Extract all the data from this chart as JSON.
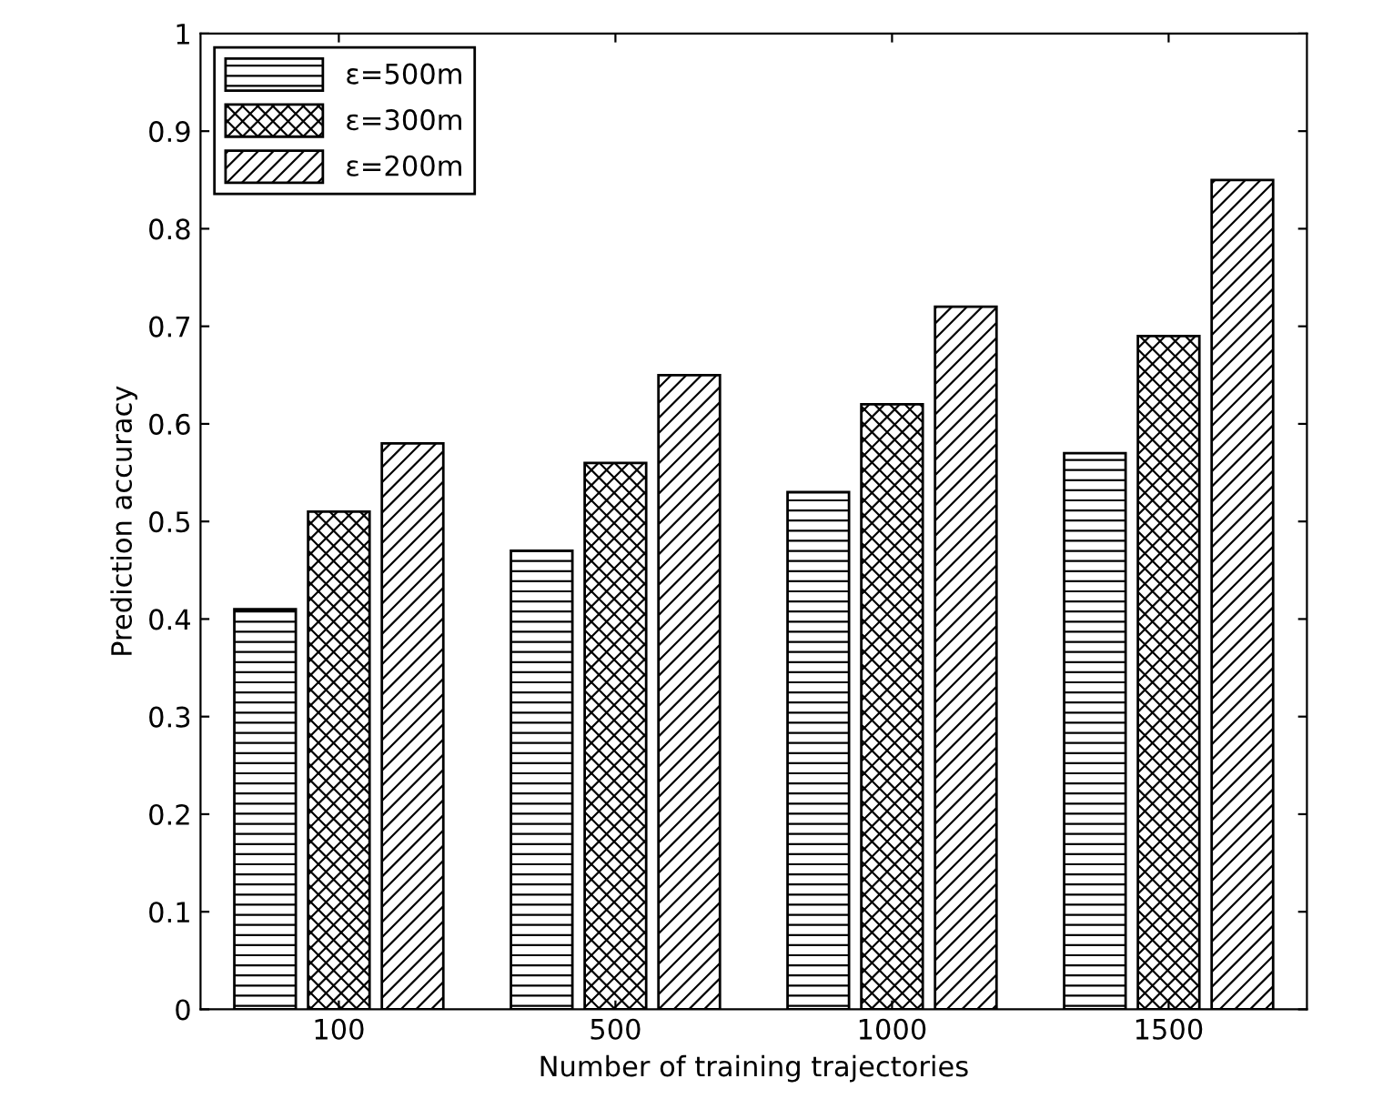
{
  "chart_data": {
    "type": "bar",
    "xlabel": "Number of training trajectories",
    "ylabel": "Prediction accuracy",
    "categories": [
      "100",
      "500",
      "1000",
      "1500"
    ],
    "series": [
      {
        "name": "ε=500m",
        "color": "#000000",
        "values": [
          0.41,
          0.47,
          0.53,
          0.57
        ]
      },
      {
        "name": "ε=300m",
        "color": "#000000",
        "values": [
          0.51,
          0.56,
          0.62,
          0.69
        ]
      },
      {
        "name": "ε=200m",
        "color": "#000000",
        "values": [
          0.58,
          0.65,
          0.72,
          0.85
        ]
      }
    ],
    "ylim": [
      0,
      1
    ],
    "yticks": [
      0,
      0.1,
      0.2,
      0.3,
      0.4,
      0.5,
      0.6,
      0.7,
      0.8,
      0.9,
      1
    ],
    "grid": false,
    "legend": "top left"
  }
}
